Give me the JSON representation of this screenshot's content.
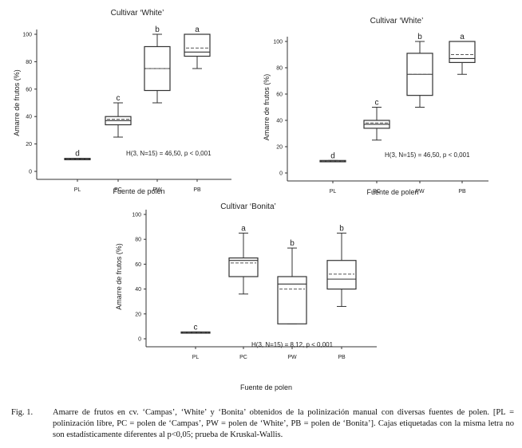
{
  "chart_data": [
    {
      "type": "box",
      "title": "Cultivar ‘White’",
      "xlabel": "Fuente de polen",
      "ylabel": "Amarre de frutos (%)",
      "ylim": [
        0,
        100
      ],
      "yticks": [
        "0",
        "20",
        "40",
        "60",
        "80",
        "100"
      ],
      "categories": [
        "PL",
        "PC",
        "PW",
        "PB"
      ],
      "boxes": [
        {
          "category": "PL",
          "min": 8.5,
          "q1": 8.5,
          "median": 9,
          "mean": 9,
          "q3": 9.5,
          "max": 9.5,
          "letter": "d"
        },
        {
          "category": "PC",
          "min": 25,
          "q1": 34,
          "median": 37,
          "mean": 38,
          "q3": 40,
          "max": 50,
          "letter": "c"
        },
        {
          "category": "PW",
          "min": 50,
          "q1": 59,
          "median": 75,
          "mean": 75,
          "q3": 91,
          "max": 100,
          "letter": "b"
        },
        {
          "category": "PB",
          "min": 75,
          "q1": 84,
          "median": 87,
          "mean": 90,
          "q3": 100,
          "max": 100,
          "letter": "a"
        }
      ],
      "annotation": "H(3, N=15) = 46,50,  p < 0,001"
    },
    {
      "type": "box",
      "title": "Cultivar ‘White’",
      "xlabel": "Fuente de polen",
      "ylabel": "Amarre de frutos (%)",
      "ylim": [
        0,
        100
      ],
      "yticks": [
        "0",
        "20",
        "40",
        "60",
        "80",
        "100"
      ],
      "categories": [
        "PL",
        "PC",
        "PW",
        "PB"
      ],
      "boxes": [
        {
          "category": "PL",
          "min": 8.5,
          "q1": 8.5,
          "median": 9,
          "mean": 9,
          "q3": 9.5,
          "max": 9.5,
          "letter": "d"
        },
        {
          "category": "PC",
          "min": 25,
          "q1": 34,
          "median": 37,
          "mean": 38,
          "q3": 40,
          "max": 50,
          "letter": "c"
        },
        {
          "category": "PW",
          "min": 50,
          "q1": 59,
          "median": 75,
          "mean": 75,
          "q3": 91,
          "max": 100,
          "letter": "b"
        },
        {
          "category": "PB",
          "min": 75,
          "q1": 84,
          "median": 87,
          "mean": 90,
          "q3": 100,
          "max": 100,
          "letter": "a"
        }
      ],
      "annotation": "H(3, N=15) = 46,50,  p < 0,001"
    },
    {
      "type": "box",
      "title": "Cultivar ‘Bonita’",
      "xlabel": "Fuente de polen",
      "ylabel": "Amarre de frutos (%)",
      "ylim": [
        0,
        100
      ],
      "yticks": [
        "0",
        "20",
        "40",
        "60",
        "80",
        "100"
      ],
      "categories": [
        "PL",
        "PC",
        "PW",
        "PB"
      ],
      "boxes": [
        {
          "category": "PL",
          "min": 4.5,
          "q1": 4.5,
          "median": 5,
          "mean": 5,
          "q3": 5.5,
          "max": 5.5,
          "letter": "c"
        },
        {
          "category": "PC",
          "min": 36,
          "q1": 50,
          "median": 63,
          "mean": 61,
          "q3": 65,
          "max": 85,
          "letter": "a"
        },
        {
          "category": "PW",
          "min": 12,
          "q1": 12,
          "median": 44,
          "mean": 40,
          "q3": 50,
          "max": 73,
          "letter": "b"
        },
        {
          "category": "PB",
          "min": 26,
          "q1": 40,
          "median": 48,
          "mean": 52,
          "q3": 63,
          "max": 85,
          "letter": "b"
        }
      ],
      "annotation": "H(3, N=15) = 8,12,  p < 0,001"
    }
  ],
  "caption": {
    "label": "Fig. 1.",
    "text": "Amarre de frutos en cv. ‘Campas’, ‘White’ y ‘Bonita’ obtenidos de la polinización manual con diversas fuentes de polen. [PL = polinización libre, PC = polen de ‘Campas’, PW = polen de ‘White’, PB = polen de ‘Bonita’]. Cajas etiquetadas con la misma letra no son estadísticamente diferentes al p<0,05; prueba de Kruskal-Wallis."
  }
}
